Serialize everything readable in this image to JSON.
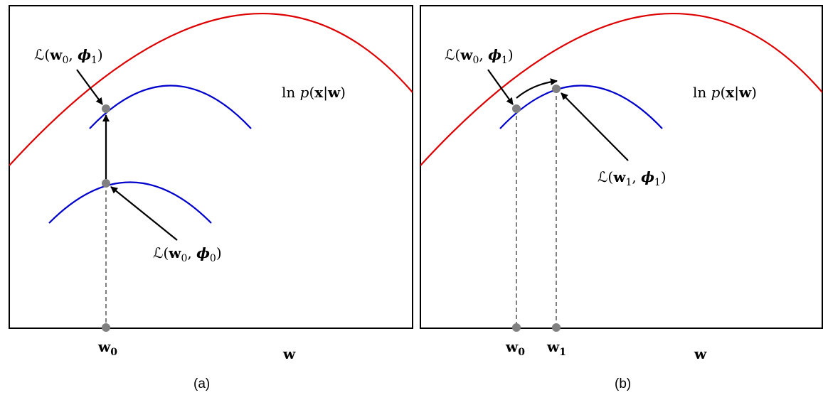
{
  "colors": {
    "log_likelihood": "#dd0000",
    "lower_bound": "#0000cc",
    "marker": "#808080",
    "dashed": "#808080",
    "arrow": "#000000",
    "frame": "#000000"
  },
  "panel_a": {
    "caption": "(a)",
    "curve_label": {
      "pre": "ln ",
      "p": "p",
      "open": "(",
      "x": "x",
      "bar": "|",
      "w": "w",
      "close": ")"
    },
    "bound_top_label": {
      "L": "ℒ",
      "open": "(",
      "w": "w",
      "w_sub": "0",
      "comma": ", ",
      "phi": "ϕ",
      "phi_sub": "1",
      "close": ")"
    },
    "bound_bottom_label": {
      "L": "ℒ",
      "open": "(",
      "w": "w",
      "w_sub": "0",
      "comma": ", ",
      "phi": "ϕ",
      "phi_sub": "0",
      "close": ")"
    },
    "axis_label": "w",
    "tick_w0": {
      "w": "w",
      "sub": "0"
    }
  },
  "panel_b": {
    "caption": "(b)",
    "curve_label": {
      "pre": "ln ",
      "p": "p",
      "open": "(",
      "x": "x",
      "bar": "|",
      "w": "w",
      "close": ")"
    },
    "bound_left_label": {
      "L": "ℒ",
      "open": "(",
      "w": "w",
      "w_sub": "0",
      "comma": ", ",
      "phi": "ϕ",
      "phi_sub": "1",
      "close": ")"
    },
    "bound_right_label": {
      "L": "ℒ",
      "open": "(",
      "w": "w",
      "w_sub": "1",
      "comma": ", ",
      "phi": "ϕ",
      "phi_sub": "1",
      "close": ")"
    },
    "axis_label": "w",
    "tick_w0": {
      "w": "w",
      "sub": "0"
    },
    "tick_w1": {
      "w": "w",
      "sub": "1"
    }
  }
}
